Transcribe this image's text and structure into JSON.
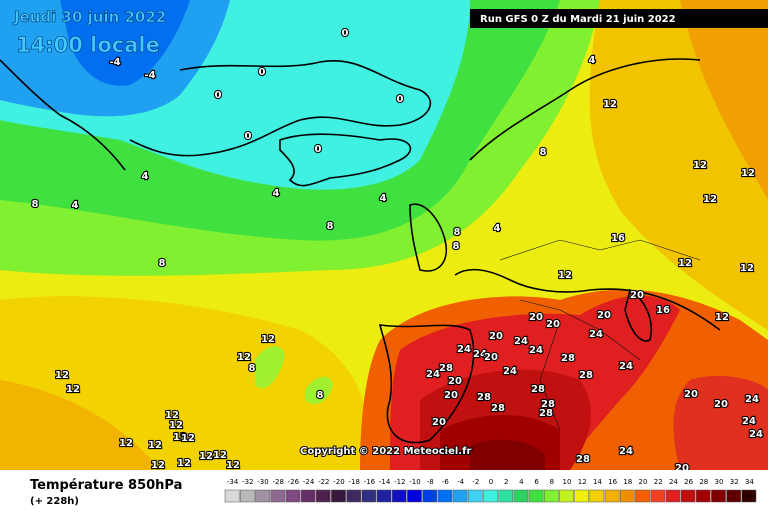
{
  "header": {
    "date": "Jeudi 30 juin 2022",
    "time": "14:00 locale",
    "run": "Run GFS 0 Z du Mardi 21 juin 2022",
    "copyright": "Copyright © 2022 Meteociel.fr"
  },
  "map": {
    "contour_labels": [
      0,
      -4,
      -4,
      0,
      0,
      0,
      0,
      0,
      4,
      4,
      4,
      4,
      8,
      8,
      8,
      4,
      8,
      8,
      4,
      8,
      12,
      12,
      12,
      12,
      16,
      12,
      12,
      12,
      20,
      16,
      12,
      20,
      20,
      20,
      24,
      20,
      24,
      24,
      24,
      20,
      24,
      28,
      24,
      28,
      24,
      20,
      24,
      28,
      28,
      20,
      28,
      28,
      20,
      20,
      24,
      28,
      28,
      20,
      24,
      24,
      24,
      28,
      20,
      12,
      12,
      8,
      8,
      12,
      12,
      12,
      12,
      12,
      12,
      12,
      12,
      12,
      12,
      12,
      12,
      12
    ]
  },
  "legend": {
    "title": "Température 850hPa",
    "subtitle": "(+ 228h)",
    "values": [
      -34,
      -32,
      -30,
      -28,
      -26,
      -24,
      -22,
      -20,
      -18,
      -16,
      -14,
      -12,
      -10,
      -8,
      -6,
      -4,
      -2,
      0,
      2,
      4,
      6,
      8,
      10,
      12,
      14,
      16,
      18,
      20,
      22,
      24,
      26,
      28,
      30,
      32,
      34
    ],
    "colors": [
      "#d8d8d8",
      "#b8b8b8",
      "#a090a0",
      "#906890",
      "#804880",
      "#683068",
      "#502050",
      "#381838",
      "#402860",
      "#303080",
      "#2020a0",
      "#1010c0",
      "#0000e0",
      "#0040f0",
      "#0070f0",
      "#20a0f0",
      "#40d0f0",
      "#40f0e0",
      "#30e0a0",
      "#30d060",
      "#40e040",
      "#80f030",
      "#c0f020",
      "#f0f000",
      "#f0d000",
      "#f0b000",
      "#f09000",
      "#f06000",
      "#f04020",
      "#e02020",
      "#c01010",
      "#a00000",
      "#800000",
      "#600000",
      "#300000"
    ]
  }
}
